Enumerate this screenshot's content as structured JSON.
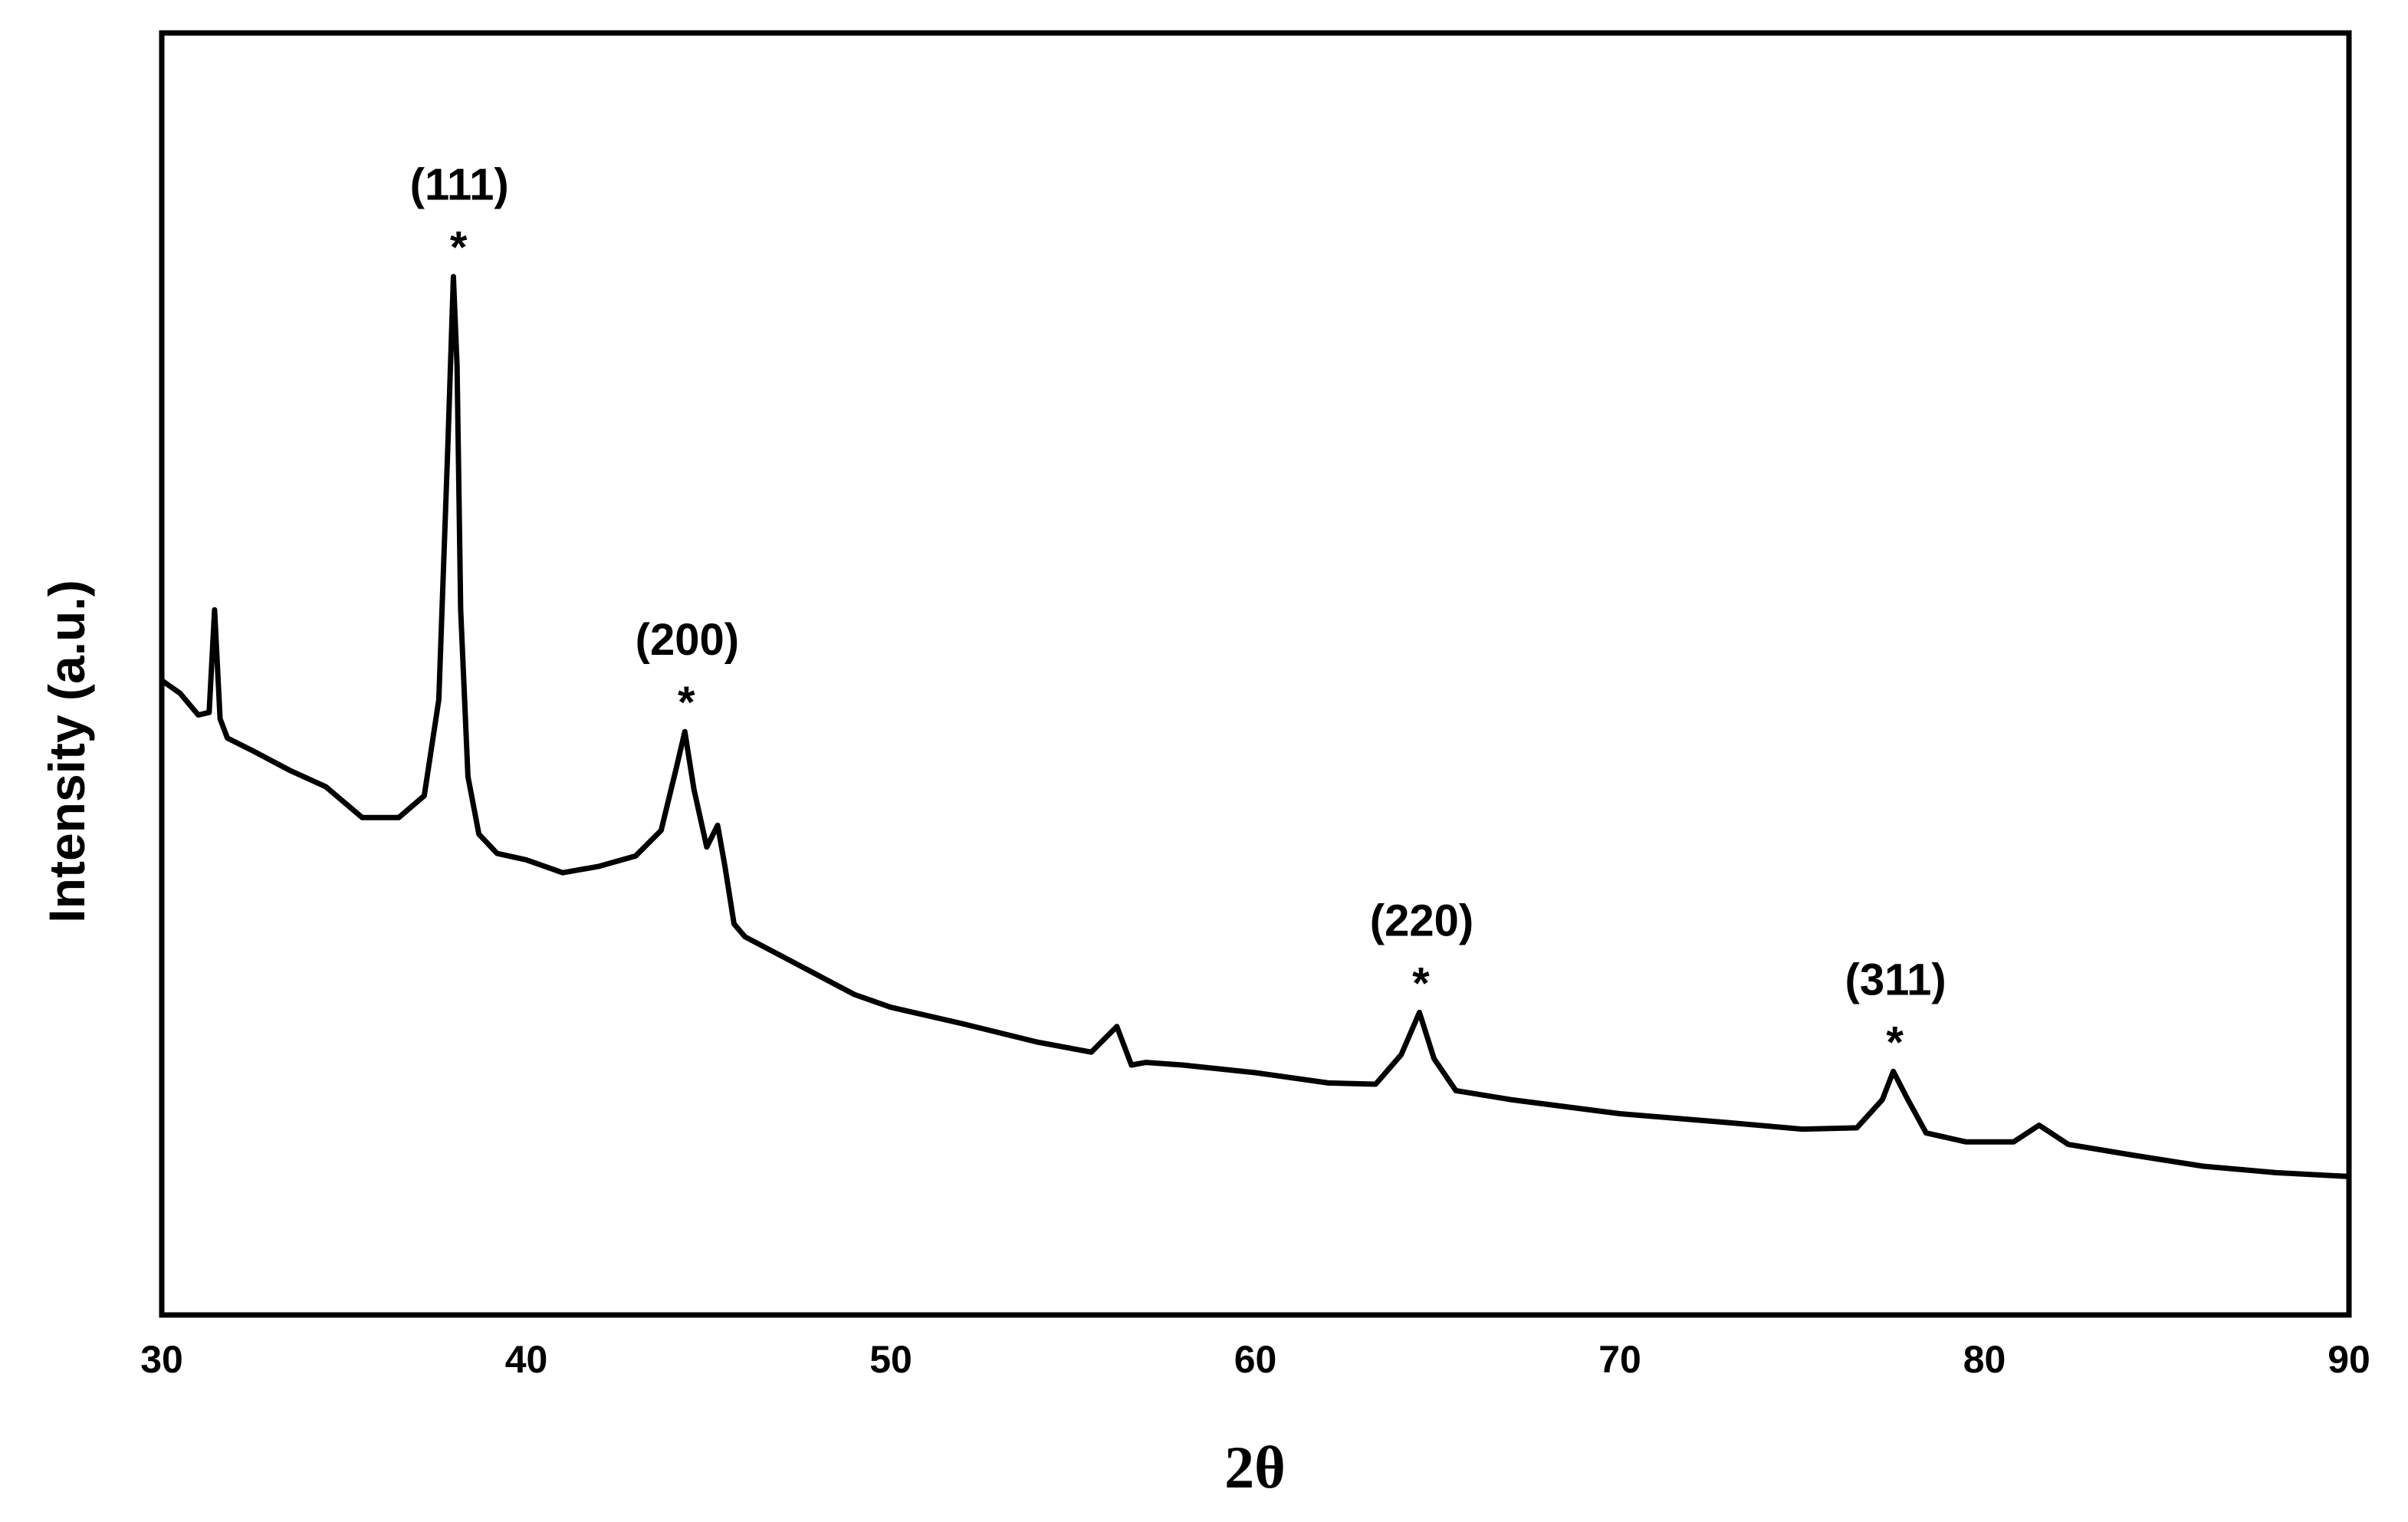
{
  "chart_data": {
    "type": "line",
    "xlabel": "2θ",
    "ylabel": "Intensity (a.u.)",
    "xlim": [
      30,
      90
    ],
    "ylim": [
      0,
      100
    ],
    "x_ticks": [
      30,
      40,
      50,
      60,
      70,
      80,
      90
    ],
    "x_tick_labels": [
      "30",
      "40",
      "50",
      "60",
      "70",
      "80",
      "90"
    ],
    "y_ticks_shown": false,
    "grid": false,
    "legend": "none",
    "line_color": "#000000",
    "series": [
      {
        "x": [
          30.0,
          30.5,
          31.0,
          31.3,
          31.45,
          31.6,
          31.8,
          32.5,
          33.5,
          34.5,
          35.5,
          36.5,
          37.2,
          37.6,
          37.85,
          38.0,
          38.1,
          38.2,
          38.4,
          38.7,
          39.2,
          40.0,
          41.0,
          42.0,
          43.0,
          43.7,
          44.1,
          44.35,
          44.6,
          44.95,
          45.25,
          45.45,
          45.7,
          46.0,
          47.0,
          48.0,
          49.0,
          50.0,
          52.0,
          54.0,
          55.5,
          56.2,
          56.4,
          56.6,
          57.0,
          58.0,
          60.0,
          62.0,
          63.3,
          64.0,
          64.5,
          64.9,
          65.5,
          67.0,
          70.0,
          73.0,
          75.0,
          76.5,
          77.2,
          77.5,
          77.9,
          78.4,
          79.5,
          80.8,
          81.5,
          82.3,
          84.0,
          86.0,
          88.0,
          90.0
        ],
        "y": [
          49.5,
          48.5,
          46.8,
          47.0,
          55.0,
          46.5,
          45.0,
          44.0,
          42.5,
          41.2,
          38.8,
          38.8,
          40.5,
          48.0,
          68.0,
          81.0,
          74.0,
          55.0,
          42.0,
          37.5,
          36.0,
          35.5,
          34.5,
          35.0,
          35.8,
          37.8,
          42.5,
          45.5,
          41.0,
          36.5,
          38.2,
          35.0,
          30.5,
          29.5,
          28.0,
          26.5,
          25.0,
          24.0,
          22.7,
          21.3,
          20.5,
          22.5,
          21.0,
          19.5,
          19.7,
          19.5,
          18.9,
          18.1,
          18.0,
          20.3,
          23.6,
          20.0,
          17.5,
          16.8,
          15.7,
          15.0,
          14.5,
          14.6,
          16.8,
          19.0,
          16.8,
          14.2,
          13.5,
          13.5,
          14.8,
          13.3,
          12.5,
          11.6,
          11.1,
          10.8
        ]
      }
    ],
    "annotations": [
      {
        "miller_index": "(111)",
        "marker": "*",
        "x": 38.1,
        "y": 81.0
      },
      {
        "miller_index": "(200)",
        "marker": "*",
        "x": 44.35,
        "y": 45.5
      },
      {
        "miller_index": "(220)",
        "marker": "*",
        "x": 64.5,
        "y": 23.6
      },
      {
        "miller_index": "(311)",
        "marker": "*",
        "x": 77.5,
        "y": 19.0
      }
    ]
  }
}
